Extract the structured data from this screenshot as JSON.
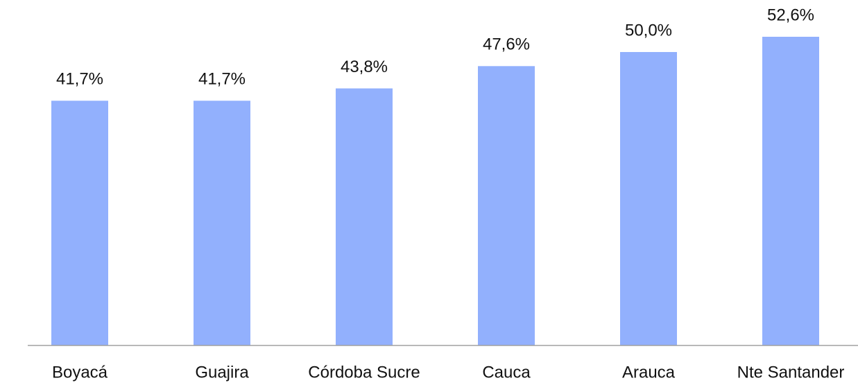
{
  "chart_data": {
    "type": "bar",
    "categories": [
      "Boyacá",
      "Guajira",
      "Córdoba Sucre",
      "Cauca",
      "Arauca",
      "Nte Santander"
    ],
    "values": [
      41.7,
      41.7,
      43.8,
      47.6,
      50.0,
      52.6
    ],
    "value_labels": [
      "41,7%",
      "41,7%",
      "43,8%",
      "47,6%",
      "50,0%",
      "52,6%"
    ],
    "color": "#92b0fd"
  }
}
